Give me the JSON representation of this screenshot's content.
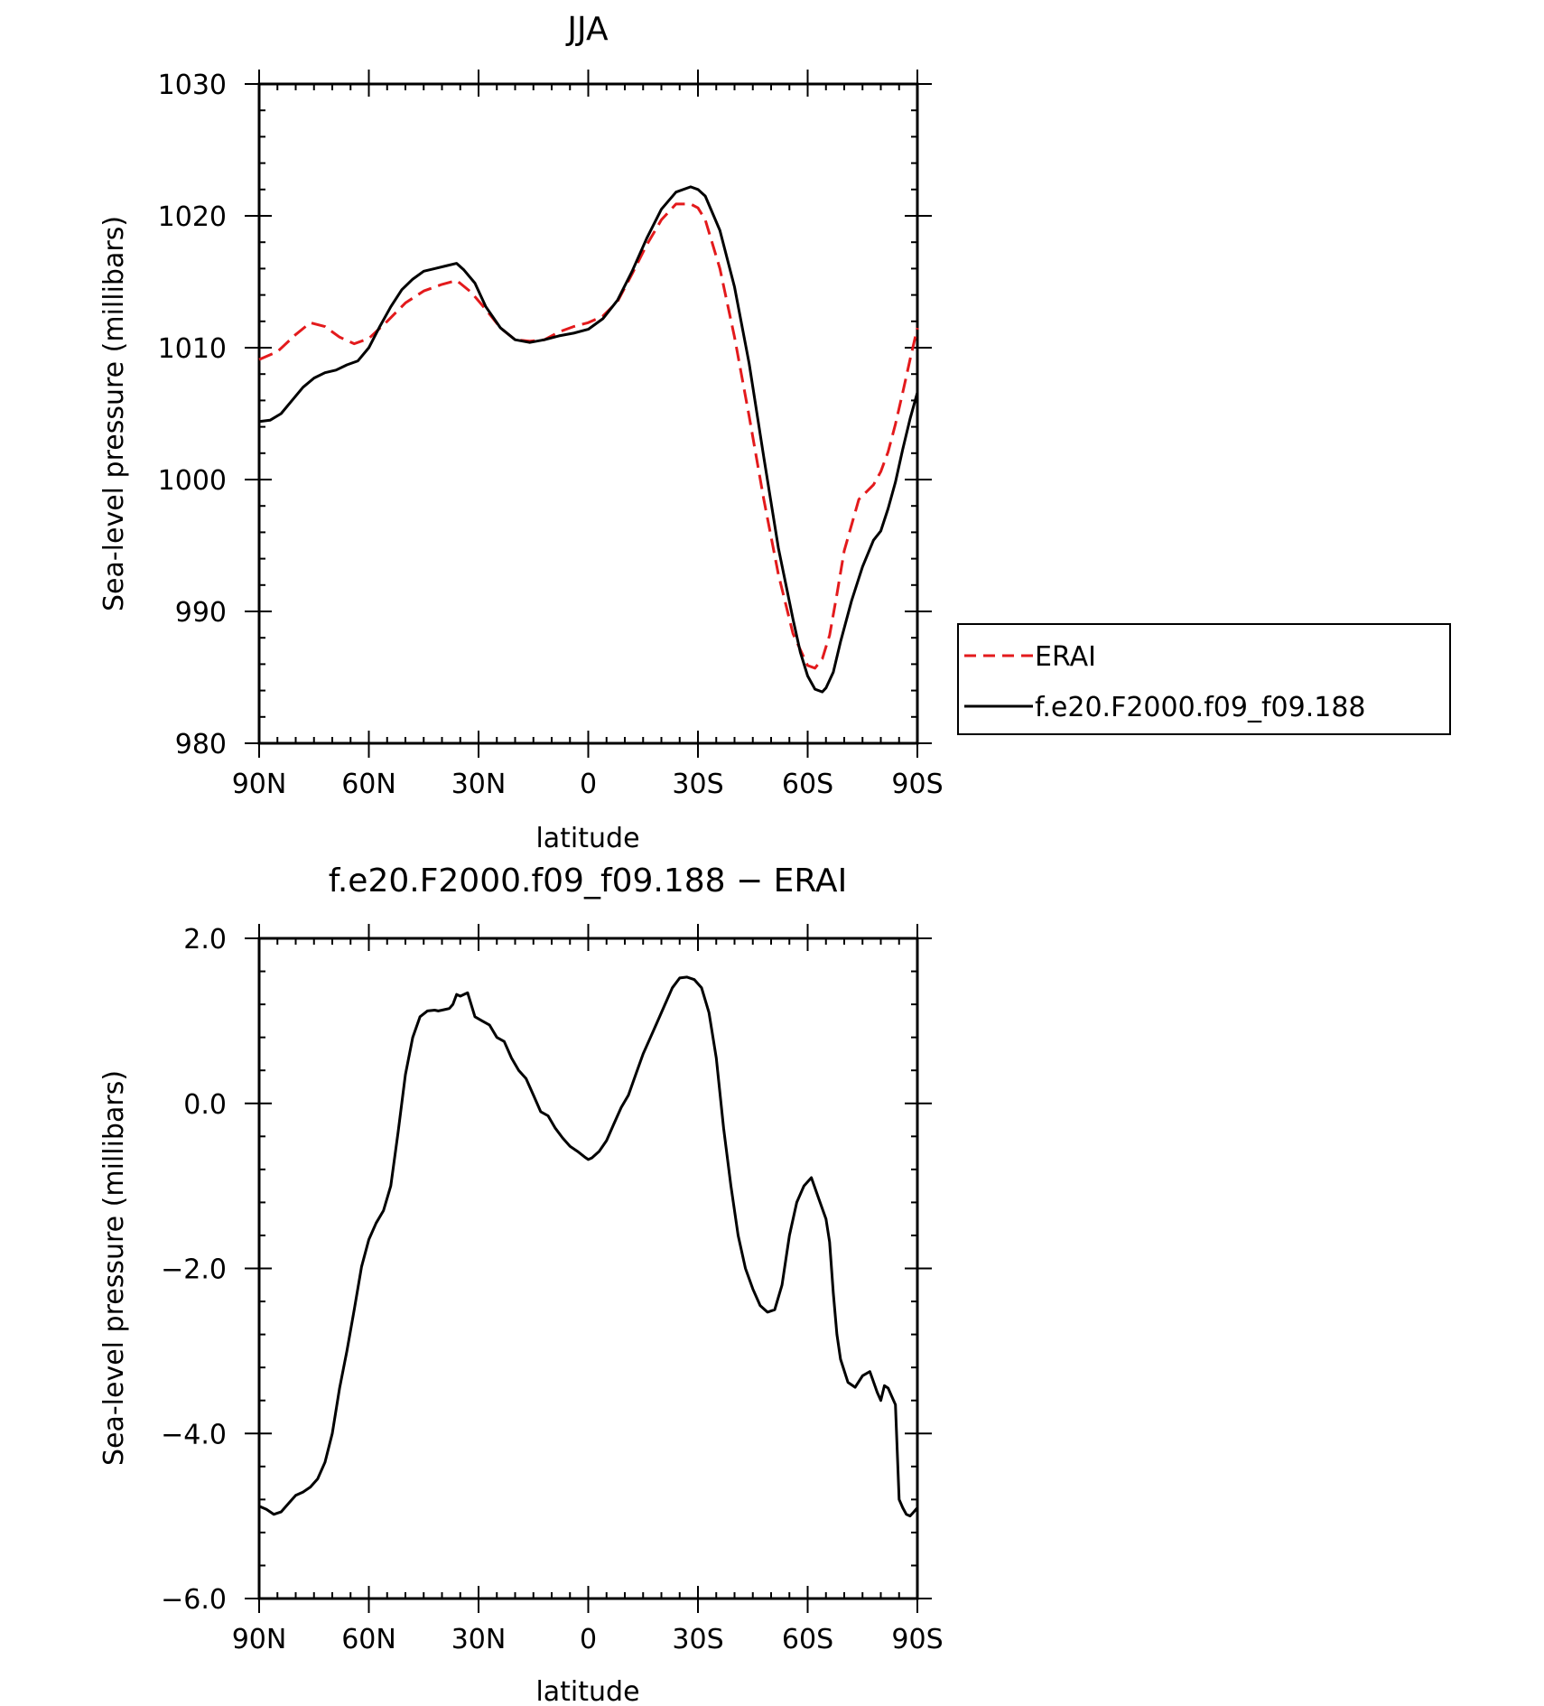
{
  "chart_data": [
    {
      "type": "line",
      "title": "JJA",
      "xlabel": "latitude",
      "ylabel": "Sea-level pressure (millibars)",
      "xlim": [
        90,
        -90
      ],
      "ylim": [
        980,
        1030
      ],
      "xtick_values": [
        90,
        60,
        30,
        0,
        -30,
        -60,
        -90
      ],
      "xtick_labels": [
        "90N",
        "60N",
        "30N",
        "0",
        "30S",
        "60S",
        "90S"
      ],
      "ytick_values": [
        980,
        990,
        1000,
        1010,
        1020,
        1030
      ],
      "ytick_labels": [
        "980",
        "990",
        "1000",
        "1010",
        "1020",
        "1030"
      ],
      "legend": {
        "placement": "right",
        "entries": [
          "ERAI",
          "f.e20.F2000.f09_f09.188"
        ]
      },
      "series": [
        {
          "name": "ERAI",
          "color": "#e31a1c",
          "style": "dashed",
          "x": [
            90,
            85,
            80,
            76,
            72,
            68,
            64,
            60,
            55,
            50,
            45,
            40,
            36,
            32,
            28,
            24,
            20,
            16,
            12,
            8,
            4,
            0,
            -4,
            -8,
            -12,
            -16,
            -20,
            -24,
            -28,
            -30,
            -32,
            -36,
            -40,
            -44,
            -48,
            -52,
            -56,
            -60,
            -62,
            -64,
            -66,
            -68,
            -70,
            -74,
            -78,
            -80,
            -82,
            -84,
            -86,
            -88,
            -90
          ],
          "y": [
            1009.1,
            1009.7,
            1011.0,
            1011.9,
            1011.6,
            1010.8,
            1010.3,
            1010.7,
            1012.0,
            1013.4,
            1014.3,
            1014.8,
            1015.1,
            1014.2,
            1012.9,
            1011.5,
            1010.6,
            1010.5,
            1010.6,
            1011.2,
            1011.6,
            1011.9,
            1012.4,
            1013.5,
            1015.6,
            1017.8,
            1019.7,
            1020.9,
            1020.9,
            1020.6,
            1019.7,
            1016.0,
            1010.8,
            1004.8,
            998.5,
            992.8,
            988.3,
            985.9,
            985.7,
            986.4,
            988.2,
            991.3,
            994.6,
            998.5,
            999.6,
            1000.6,
            1002.1,
            1004.2,
            1006.6,
            1009.1,
            1011.5
          ]
        },
        {
          "name": "f.e20.F2000.f09_f09.188",
          "color": "#000000",
          "style": "solid",
          "x": [
            90,
            87,
            84,
            81,
            78,
            75,
            72,
            69,
            66,
            63,
            60,
            57,
            54,
            51,
            48,
            45,
            42,
            39,
            36,
            34,
            31,
            28,
            24,
            20,
            16,
            12,
            8,
            4,
            0,
            -4,
            -8,
            -12,
            -16,
            -20,
            -24,
            -28,
            -30,
            -32,
            -36,
            -40,
            -44,
            -48,
            -52,
            -56,
            -58,
            -60,
            -62,
            -64,
            -65,
            -67,
            -69,
            -72,
            -75,
            -78,
            -80,
            -82,
            -84,
            -86,
            -88,
            -90
          ],
          "y": [
            1004.4,
            1004.5,
            1005.0,
            1006.0,
            1007.0,
            1007.7,
            1008.1,
            1008.3,
            1008.7,
            1009.0,
            1010.0,
            1011.6,
            1013.1,
            1014.4,
            1015.2,
            1015.8,
            1016.0,
            1016.2,
            1016.4,
            1015.9,
            1014.9,
            1013.1,
            1011.5,
            1010.6,
            1010.4,
            1010.6,
            1010.9,
            1011.1,
            1011.4,
            1012.2,
            1013.6,
            1015.8,
            1018.3,
            1020.5,
            1021.8,
            1022.2,
            1022.0,
            1021.5,
            1018.9,
            1014.6,
            1008.8,
            1001.7,
            994.8,
            989.4,
            986.9,
            985.1,
            984.1,
            983.9,
            984.2,
            985.4,
            987.7,
            990.8,
            993.4,
            995.4,
            996.1,
            997.8,
            999.8,
            1002.3,
            1004.6,
            1006.6
          ]
        }
      ]
    },
    {
      "type": "line",
      "title": "f.e20.F2000.f09_f09.188 − ERAI",
      "xlabel": "latitude",
      "ylabel": "Sea-level pressure (millibars)",
      "xlim": [
        90,
        -90
      ],
      "ylim": [
        -6,
        2
      ],
      "xtick_values": [
        90,
        60,
        30,
        0,
        -30,
        -60,
        -90
      ],
      "xtick_labels": [
        "90N",
        "60N",
        "30N",
        "0",
        "30S",
        "60S",
        "90S"
      ],
      "ytick_values": [
        -6,
        -4,
        -2,
        0,
        2
      ],
      "ytick_labels": [
        "−6.0",
        "−4.0",
        "−2.0",
        "0.0",
        "2.0"
      ],
      "series": [
        {
          "name": "",
          "color": "#000000",
          "style": "solid",
          "x": [
            90,
            88,
            86,
            84,
            82,
            80,
            78,
            76,
            74,
            72,
            70,
            68,
            66,
            64,
            62,
            60,
            58,
            56,
            54,
            52,
            50,
            48,
            46,
            44,
            42,
            41,
            40,
            39,
            38,
            37,
            36,
            35,
            33,
            31,
            29,
            27,
            25,
            23,
            21,
            19,
            17,
            15,
            13,
            11,
            9,
            7,
            5,
            3,
            1,
            0,
            -1,
            -3,
            -5,
            -7,
            -9,
            -11,
            -13,
            -15,
            -17,
            -19,
            -21,
            -23,
            -25,
            -27,
            -29,
            -31,
            -33,
            -35,
            -37,
            -39,
            -41,
            -43,
            -45,
            -47,
            -49,
            -51,
            -53,
            -55,
            -57,
            -59,
            -61,
            -63,
            -65,
            -66,
            -67,
            -68,
            -69,
            -71,
            -73,
            -75,
            -77,
            -79,
            -80,
            -81,
            -82,
            -83,
            -84,
            -85,
            -86,
            -87,
            -88,
            -89,
            -90
          ],
          "y": [
            -4.88,
            -4.92,
            -4.98,
            -4.95,
            -4.85,
            -4.75,
            -4.71,
            -4.65,
            -4.55,
            -4.35,
            -4.0,
            -3.45,
            -3.0,
            -2.5,
            -1.98,
            -1.65,
            -1.45,
            -1.3,
            -1.0,
            -0.35,
            0.35,
            0.8,
            1.05,
            1.12,
            1.13,
            1.12,
            1.13,
            1.14,
            1.15,
            1.2,
            1.32,
            1.3,
            1.34,
            1.05,
            1.0,
            0.95,
            0.8,
            0.75,
            0.55,
            0.4,
            0.3,
            0.1,
            -0.1,
            -0.15,
            -0.3,
            -0.42,
            -0.52,
            -0.58,
            -0.65,
            -0.68,
            -0.66,
            -0.58,
            -0.45,
            -0.25,
            -0.05,
            0.1,
            0.35,
            0.6,
            0.8,
            1.0,
            1.2,
            1.4,
            1.52,
            1.53,
            1.5,
            1.4,
            1.1,
            0.55,
            -0.3,
            -1.0,
            -1.6,
            -2.0,
            -2.25,
            -2.45,
            -2.53,
            -2.5,
            -2.2,
            -1.6,
            -1.2,
            -1.0,
            -0.9,
            -1.15,
            -1.4,
            -1.68,
            -2.3,
            -2.8,
            -3.1,
            -3.38,
            -3.44,
            -3.3,
            -3.25,
            -3.5,
            -3.6,
            -3.42,
            -3.45,
            -3.55,
            -3.65,
            -4.8,
            -4.9,
            -4.98,
            -5.0,
            -4.95,
            -4.9
          ]
        }
      ]
    }
  ]
}
